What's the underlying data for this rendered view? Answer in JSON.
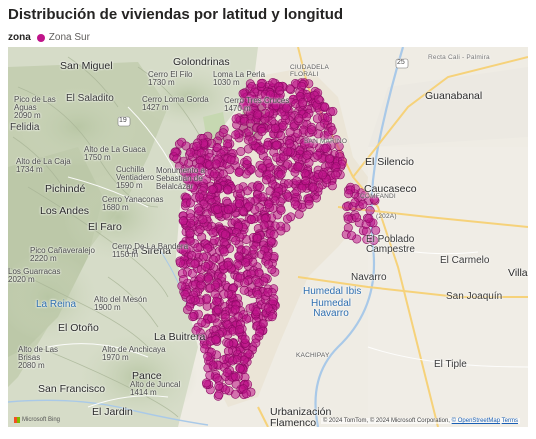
{
  "title": "Distribución de viviendas por latitud y longitud",
  "legend": {
    "title": "zona",
    "items": [
      {
        "label": "Zona Sur",
        "color": "#c0148a"
      }
    ]
  },
  "map": {
    "labels": {
      "golondrinas": "Golondrinas",
      "cudaf": "CIUDADELA\nFLORALI",
      "sanmiguel": "San Miguel",
      "elfilo": "Cerro El Filo\n1730 m",
      "laperla": "Loma La Perla\n1030 m",
      "saladito": "El Saladito",
      "lomagorda": "Cerro Loma Gorda\n1427 m",
      "trescruces": "Cerro Tres Cruces\n1470 m",
      "guanabanal": "Guanabanal",
      "picoaguas": "Pico de Las\nAguas\n2090 m",
      "felidia": "Felidia",
      "sanmarino": "SAN MARINO",
      "laguaca": "Alto de La Guaca\n1750 m",
      "lacaja": "Alto de La Caja\n1734 m",
      "elsilencio": "El Silencio",
      "pichinde": "Pichindé",
      "cuchilla": "Cuchilla\nVentiadero\n1590 m",
      "sebastian": "Monumento a\nSebastián de\nBelalcázar",
      "caucaseco": "Caucaseco",
      "yanaconas": "Cerro Yanaconas\n1680 m",
      "losandes": "Los Andes",
      "elfaro": "El Faro",
      "elpoblado": "El Poblado\nCampestre",
      "canaverale": "Pico Cañaveralejo\n2220 m",
      "lasiren": "La Sirena",
      "elcarmelo": "El Carmelo",
      "navarro": "Navarro",
      "villag": "Villa G",
      "guarracas": "Los Guarracas\n2020 m",
      "labandera": "Cerro De La Bandera\n1150 m",
      "lareina": "La Reina",
      "altomeson": "Alto del Mesón\n1900 m",
      "ibis": "Humedal Ibis",
      "humnavarro": "Humedal\nNavarro",
      "sanjoaquin": "San Joaquín",
      "eloto": "El Otoño",
      "buitrera": "La Buitrera",
      "altolas": "Alto de Las\nBrisas\n2080 m",
      "anchicaya": "Alto de Anchicaya\n1970 m",
      "kachipay": "KACHIPAY",
      "eltiple": "El Tiple",
      "pance": "Pance",
      "saltsanfrancisco": "San Francisco",
      "juncal": "Alto de Juncal\n1414 m",
      "eljardin": "El Jardin",
      "urbanizacion": "Urbanización\nFlamenco",
      "rectacali": "Recta Cali - Palmira",
      "comfandi": "COMFANDI",
      "z202a": "(202A)",
      "rt19": "19",
      "rt25": "25"
    },
    "attribution": "© 2024 TomTom, © 2024 Microsoft Corporation, ",
    "attribution_link": "© OpenStreetMap",
    "attribution_terms": "Terms",
    "bing": "Microsoft Bing"
  }
}
